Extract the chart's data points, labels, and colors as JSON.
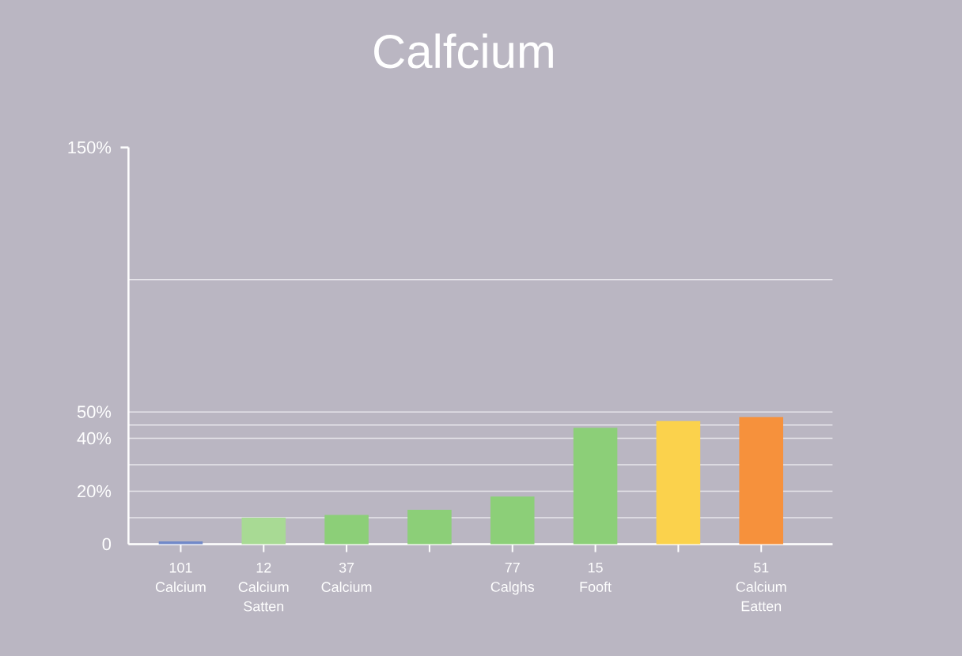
{
  "chart_data": {
    "type": "bar",
    "title": "Calfcium",
    "categories": [
      "101 Calcium",
      "12 Calcium Satten",
      "37 Calcium",
      null,
      "77 Calghs",
      "15 Fooft",
      null,
      "51 Calcium Eatten"
    ],
    "values": [
      1,
      10,
      11,
      13,
      18,
      44,
      46.5,
      48
    ],
    "colors": [
      "#7189c9",
      "#a8da94",
      "#8ccf78",
      "#8ccf78",
      "#8ccf78",
      "#8ccf78",
      "#fbd24c",
      "#f6913c"
    ],
    "ylim": [
      0,
      150
    ],
    "yticks": [
      0,
      {
        "value": 10,
        "label": null
      },
      {
        "value": 20,
        "label": "20%"
      },
      {
        "value": 30,
        "label": null
      },
      {
        "value": 40,
        "label": "40%"
      },
      {
        "value": 45,
        "label": null
      },
      {
        "value": 50,
        "label": "50%"
      },
      {
        "value": 100,
        "label": null
      },
      {
        "value": 150,
        "label": "150%"
      }
    ],
    "grid": "y"
  }
}
